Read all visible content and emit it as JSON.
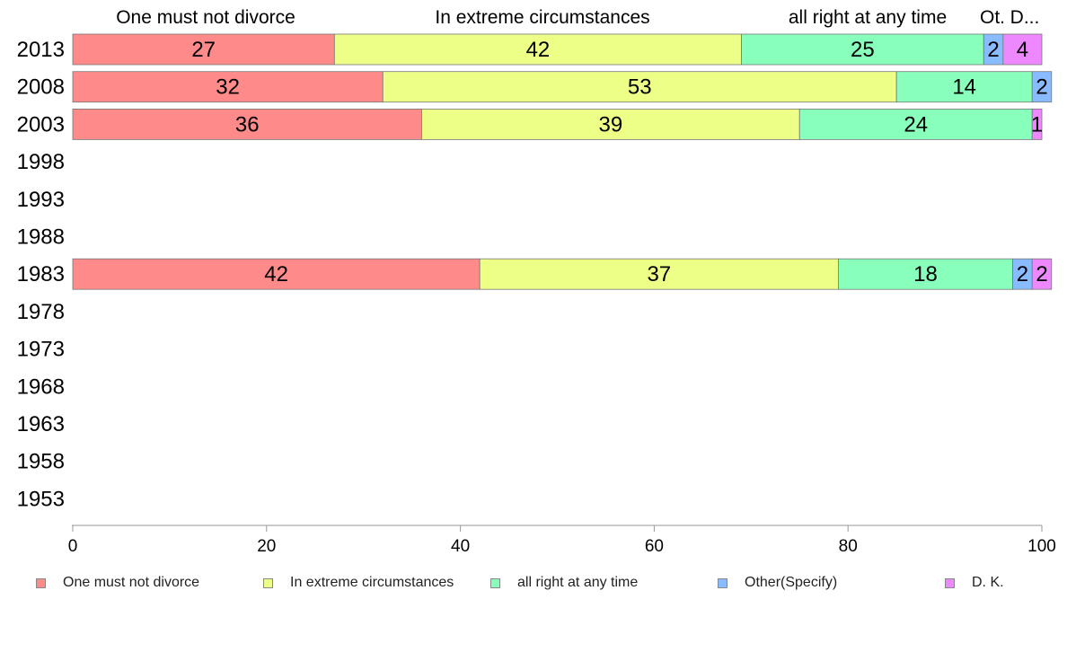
{
  "chart_data": {
    "type": "bar",
    "orientation": "horizontal",
    "stacked": true,
    "categories": [
      "2013",
      "2008",
      "2003",
      "1998",
      "1993",
      "1988",
      "1983",
      "1978",
      "1973",
      "1968",
      "1963",
      "1958",
      "1953"
    ],
    "series": [
      {
        "name": "One must not divorce",
        "color": "#ff8a8a",
        "values": [
          27,
          32,
          36,
          null,
          null,
          null,
          42,
          null,
          null,
          null,
          null,
          null,
          null
        ]
      },
      {
        "name": "In extreme circumstances",
        "color": "#eeff88",
        "values": [
          42,
          53,
          39,
          null,
          null,
          null,
          37,
          null,
          null,
          null,
          null,
          null,
          null
        ]
      },
      {
        "name": "all right at any time",
        "color": "#88ffbb",
        "values": [
          25,
          14,
          24,
          null,
          null,
          null,
          18,
          null,
          null,
          null,
          null,
          null,
          null
        ]
      },
      {
        "name": "Other(Specify)",
        "color": "#88bbff",
        "values": [
          2,
          2,
          null,
          null,
          null,
          null,
          2,
          null,
          null,
          null,
          null,
          null,
          null
        ]
      },
      {
        "name": "D. K.",
        "color": "#ee88ff",
        "values": [
          4,
          null,
          1,
          null,
          null,
          null,
          2,
          null,
          null,
          null,
          null,
          null,
          null
        ]
      }
    ],
    "top_labels": [
      "One must not divorce",
      "In extreme circumstances",
      "all right at any time",
      "Ot.",
      "D..."
    ],
    "x_ticks": [
      0,
      20,
      40,
      60,
      80,
      100
    ],
    "xlim": [
      0,
      100
    ],
    "grid": false,
    "legend_position": "bottom"
  }
}
